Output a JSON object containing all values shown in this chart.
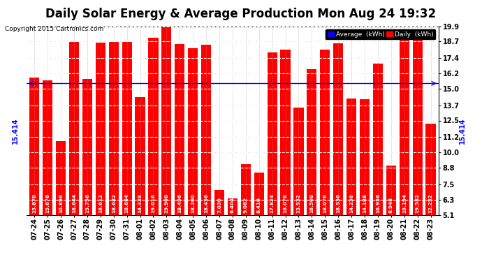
{
  "title": "Daily Solar Energy & Average Production Mon Aug 24 19:32",
  "copyright": "Copyright 2015 Cartronics.com",
  "average": 15.414,
  "categories": [
    "07-24",
    "07-25",
    "07-26",
    "07-27",
    "07-28",
    "07-29",
    "07-30",
    "07-31",
    "08-01",
    "08-02",
    "08-03",
    "08-04",
    "08-05",
    "08-06",
    "08-07",
    "08-08",
    "08-09",
    "08-10",
    "08-11",
    "08-12",
    "08-13",
    "08-14",
    "08-15",
    "08-16",
    "08-17",
    "08-18",
    "08-19",
    "08-20",
    "08-21",
    "08-22",
    "08-23"
  ],
  "values": [
    15.87,
    15.676,
    10.896,
    18.664,
    15.756,
    18.612,
    18.682,
    18.664,
    14.338,
    19.016,
    19.9,
    18.496,
    18.2,
    18.436,
    7.03,
    6.404,
    9.082,
    8.41,
    17.824,
    18.076,
    13.532,
    16.508,
    18.076,
    18.536,
    14.236,
    14.188,
    16.956,
    8.948,
    19.194,
    19.582,
    12.252
  ],
  "bar_color": "#ff0000",
  "avg_line_color": "#0000ff",
  "background_color": "#ffffff",
  "grid_color": "#999999",
  "ylim_min": 5.1,
  "ylim_max": 19.9,
  "yticks": [
    5.1,
    6.3,
    7.5,
    8.8,
    10.0,
    11.2,
    12.5,
    13.7,
    15.0,
    16.2,
    17.4,
    18.7,
    19.9
  ],
  "title_fontsize": 12,
  "tick_label_fontsize": 7,
  "value_fontsize": 5.2,
  "avg_fontsize": 7
}
